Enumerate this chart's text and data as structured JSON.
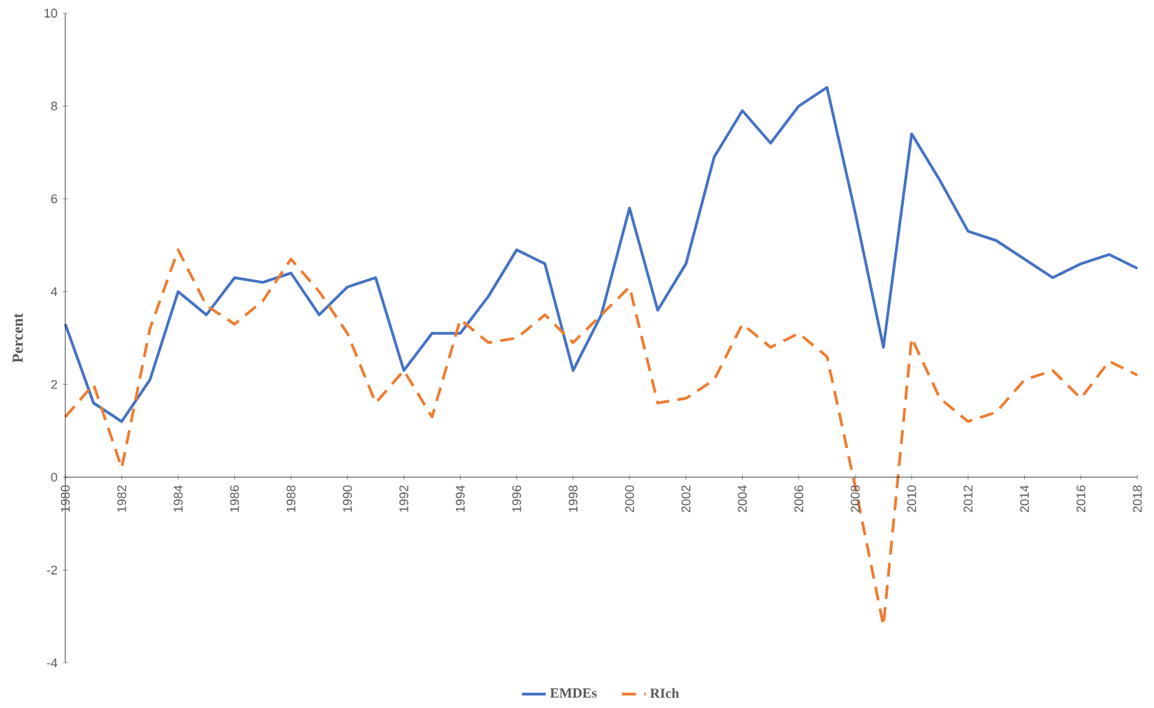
{
  "chart_data": {
    "type": "line",
    "ylabel": "Percent",
    "x": [
      1980,
      1981,
      1982,
      1983,
      1984,
      1985,
      1986,
      1987,
      1988,
      1989,
      1990,
      1991,
      1992,
      1993,
      1994,
      1995,
      1996,
      1997,
      1998,
      1999,
      2000,
      2001,
      2002,
      2003,
      2004,
      2005,
      2006,
      2007,
      2008,
      2009,
      2010,
      2011,
      2012,
      2013,
      2014,
      2015,
      2016,
      2017,
      2018
    ],
    "series": [
      {
        "name": "EMDEs",
        "color": "#4472c4",
        "line_style": "solid",
        "values": [
          3.3,
          1.6,
          1.2,
          2.1,
          4.0,
          3.5,
          4.3,
          4.2,
          4.4,
          3.5,
          4.1,
          4.3,
          2.3,
          3.1,
          3.1,
          3.9,
          4.9,
          4.6,
          2.3,
          3.5,
          5.8,
          3.6,
          4.6,
          6.9,
          7.9,
          7.2,
          8.0,
          8.4,
          5.7,
          2.8,
          7.4,
          6.4,
          5.3,
          5.1,
          4.7,
          4.3,
          4.6,
          4.8,
          4.5
        ]
      },
      {
        "name": "RIch",
        "color": "#ed7d31",
        "line_style": "dashed",
        "values": [
          1.3,
          2.0,
          0.2,
          3.2,
          4.9,
          3.7,
          3.3,
          3.8,
          4.7,
          4.0,
          3.1,
          1.6,
          2.3,
          1.3,
          3.4,
          2.9,
          3.0,
          3.5,
          2.9,
          3.5,
          4.1,
          1.6,
          1.7,
          2.1,
          3.3,
          2.8,
          3.1,
          2.6,
          -0.2,
          -3.2,
          3.0,
          1.7,
          1.2,
          1.4,
          2.1,
          2.3,
          1.7,
          2.5,
          2.2
        ]
      }
    ],
    "xlim": [
      1980,
      2018
    ],
    "xticks": [
      1980,
      1982,
      1984,
      1986,
      1988,
      1990,
      1992,
      1994,
      1996,
      1998,
      2000,
      2002,
      2004,
      2006,
      2008,
      2010,
      2012,
      2014,
      2016,
      2018
    ],
    "ylim": [
      -4,
      10
    ],
    "yticks": [
      -4,
      -2,
      0,
      2,
      4,
      6,
      8,
      10
    ],
    "grid": false,
    "legend": "bottom",
    "marker": "none"
  }
}
